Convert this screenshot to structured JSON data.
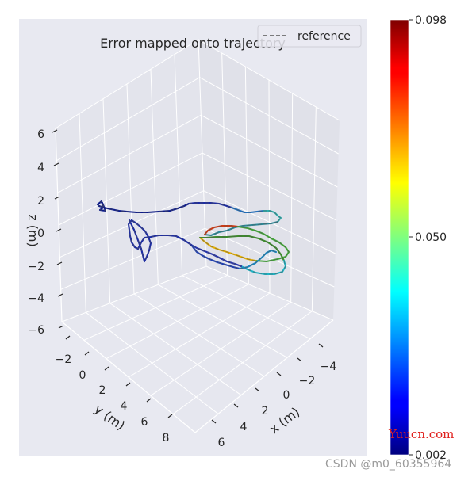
{
  "chart_data": {
    "type": "line",
    "projection": "3d",
    "title": "Error mapped onto trajectory",
    "xlabel": "x (m)",
    "ylabel": "y (m)",
    "zlabel": "z (m)",
    "x_ticks": [
      "−4",
      "−2",
      "0",
      "2",
      "4",
      "6"
    ],
    "y_ticks": [
      "−2",
      "0",
      "2",
      "4",
      "6",
      "8"
    ],
    "z_ticks": [
      "6",
      "4",
      "2",
      "0",
      "−2",
      "−4",
      "−6"
    ],
    "legend": {
      "entries": [
        "reference"
      ],
      "placement": "top-right",
      "line_style": "dashed"
    },
    "colorbar": {
      "colormap": "jet",
      "min": 0.002,
      "max": 0.098,
      "tick_labels": [
        "0.098",
        "0.050",
        "0.002"
      ]
    },
    "grid": true,
    "colors": {
      "pane": "#e8e9f1",
      "grid": "#ffffff",
      "reference": "#555555"
    }
  },
  "watermarks": {
    "site": "Yuucn.com",
    "csdn": "CSDN @m0_60355964"
  }
}
